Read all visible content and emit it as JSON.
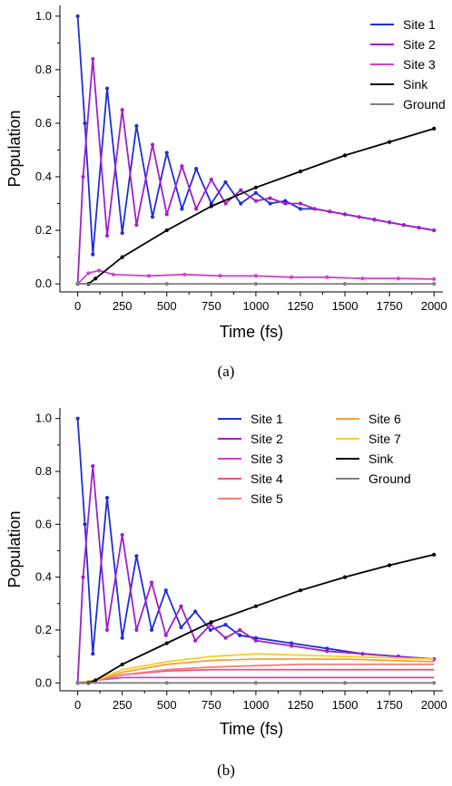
{
  "chart_data": [
    {
      "panel": "(a)",
      "type": "line",
      "xlabel": "Time (fs)",
      "ylabel": "Population",
      "xlim": [
        -100,
        2050
      ],
      "ylim": [
        -0.03,
        1.04
      ],
      "xticks": [
        0,
        250,
        500,
        750,
        1000,
        1250,
        1500,
        1750,
        2000
      ],
      "yticks": [
        0.0,
        0.2,
        0.4,
        0.6,
        0.8,
        1.0
      ],
      "legend_position": "top-right",
      "legend_columns": 1,
      "grid": false,
      "series": [
        {
          "name": "Site 1",
          "color": "#1f2fd6",
          "markers": true,
          "x": [
            0,
            40,
            85,
            165,
            250,
            330,
            420,
            500,
            585,
            665,
            750,
            830,
            915,
            1000,
            1080,
            1165,
            1250,
            1330,
            1415,
            1500,
            1580,
            1665,
            1750,
            1830,
            1915,
            2000
          ],
          "y": [
            1.0,
            0.6,
            0.11,
            0.73,
            0.19,
            0.59,
            0.25,
            0.49,
            0.28,
            0.43,
            0.3,
            0.38,
            0.3,
            0.34,
            0.3,
            0.31,
            0.28,
            0.28,
            0.27,
            0.26,
            0.25,
            0.24,
            0.23,
            0.22,
            0.21,
            0.2
          ]
        },
        {
          "name": "Site 2",
          "color": "#a020c8",
          "markers": true,
          "x": [
            0,
            30,
            85,
            165,
            250,
            330,
            420,
            500,
            585,
            665,
            750,
            830,
            915,
            1000,
            1080,
            1165,
            1250,
            1330,
            1415,
            1500,
            1580,
            1665,
            1750,
            1830,
            1915,
            2000
          ],
          "y": [
            0.0,
            0.4,
            0.84,
            0.18,
            0.65,
            0.22,
            0.52,
            0.26,
            0.44,
            0.28,
            0.39,
            0.3,
            0.35,
            0.31,
            0.32,
            0.3,
            0.3,
            0.28,
            0.27,
            0.26,
            0.25,
            0.24,
            0.23,
            0.22,
            0.21,
            0.2
          ]
        },
        {
          "name": "Site 3",
          "color": "#cc44cc",
          "markers": true,
          "x": [
            0,
            60,
            120,
            200,
            400,
            600,
            800,
            1000,
            1200,
            1400,
            1600,
            1800,
            2000
          ],
          "y": [
            0.0,
            0.04,
            0.05,
            0.035,
            0.03,
            0.035,
            0.03,
            0.03,
            0.025,
            0.025,
            0.02,
            0.02,
            0.018
          ]
        },
        {
          "name": "Sink",
          "color": "#000000",
          "markers": true,
          "x": [
            0,
            60,
            100,
            250,
            500,
            750,
            1000,
            1250,
            1500,
            1750,
            2000
          ],
          "y": [
            0.0,
            0.0,
            0.02,
            0.1,
            0.2,
            0.29,
            0.36,
            0.42,
            0.48,
            0.53,
            0.58
          ]
        },
        {
          "name": "Ground",
          "color": "#808080",
          "markers": true,
          "x": [
            0,
            500,
            1000,
            1500,
            2000
          ],
          "y": [
            0.0,
            0.0,
            0.0,
            0.0,
            0.0
          ]
        }
      ]
    },
    {
      "panel": "(b)",
      "type": "line",
      "xlabel": "Time (fs)",
      "ylabel": "Population",
      "xlim": [
        -100,
        2050
      ],
      "ylim": [
        -0.03,
        1.04
      ],
      "xticks": [
        0,
        250,
        500,
        750,
        1000,
        1250,
        1500,
        1750,
        2000
      ],
      "yticks": [
        0.0,
        0.2,
        0.4,
        0.6,
        0.8,
        1.0
      ],
      "legend_position": "top-right",
      "legend_columns": 2,
      "grid": false,
      "series": [
        {
          "name": "Site 1",
          "color": "#1f2fd6",
          "markers": true,
          "x": [
            0,
            40,
            85,
            165,
            250,
            330,
            415,
            495,
            580,
            660,
            745,
            830,
            910,
            1000,
            1200,
            1400,
            1600,
            1800,
            2000
          ],
          "y": [
            1.0,
            0.6,
            0.11,
            0.7,
            0.17,
            0.48,
            0.2,
            0.35,
            0.21,
            0.27,
            0.2,
            0.22,
            0.18,
            0.17,
            0.15,
            0.13,
            0.11,
            0.1,
            0.09
          ]
        },
        {
          "name": "Site 2",
          "color": "#a020c8",
          "markers": true,
          "x": [
            0,
            30,
            85,
            165,
            250,
            330,
            415,
            495,
            580,
            660,
            745,
            830,
            910,
            1000,
            1200,
            1400,
            1600,
            1800,
            2000
          ],
          "y": [
            0.0,
            0.4,
            0.82,
            0.2,
            0.56,
            0.2,
            0.38,
            0.18,
            0.29,
            0.16,
            0.22,
            0.17,
            0.2,
            0.16,
            0.14,
            0.12,
            0.11,
            0.1,
            0.09
          ]
        },
        {
          "name": "Site 3",
          "color": "#cc44cc",
          "markers": false,
          "x": [
            0,
            100,
            250,
            500,
            750,
            1000,
            1500,
            2000
          ],
          "y": [
            0.0,
            0.01,
            0.02,
            0.02,
            0.02,
            0.02,
            0.02,
            0.02
          ]
        },
        {
          "name": "Site 4",
          "color": "#ee5588",
          "markers": false,
          "x": [
            0,
            100,
            250,
            500,
            750,
            1000,
            1250,
            1500,
            1750,
            2000
          ],
          "y": [
            0.0,
            0.01,
            0.03,
            0.045,
            0.05,
            0.05,
            0.05,
            0.05,
            0.05,
            0.05
          ]
        },
        {
          "name": "Site 5",
          "color": "#f08080",
          "markers": false,
          "x": [
            0,
            100,
            250,
            500,
            750,
            1000,
            1250,
            1500,
            1750,
            2000
          ],
          "y": [
            0.0,
            0.01,
            0.03,
            0.05,
            0.06,
            0.065,
            0.07,
            0.07,
            0.07,
            0.07
          ]
        },
        {
          "name": "Site 6",
          "color": "#f5a040",
          "markers": false,
          "x": [
            0,
            100,
            250,
            500,
            750,
            1000,
            1250,
            1500,
            1750,
            2000
          ],
          "y": [
            0.0,
            0.01,
            0.04,
            0.07,
            0.085,
            0.09,
            0.09,
            0.09,
            0.085,
            0.08
          ]
        },
        {
          "name": "Site 7",
          "color": "#f5d020",
          "markers": false,
          "x": [
            0,
            100,
            250,
            500,
            750,
            1000,
            1250,
            1500,
            1750,
            2000
          ],
          "y": [
            0.0,
            0.01,
            0.05,
            0.08,
            0.1,
            0.11,
            0.105,
            0.1,
            0.095,
            0.09
          ]
        },
        {
          "name": "Sink",
          "color": "#000000",
          "markers": true,
          "x": [
            0,
            60,
            100,
            250,
            500,
            750,
            1000,
            1250,
            1500,
            1750,
            2000
          ],
          "y": [
            0.0,
            0.0,
            0.01,
            0.07,
            0.15,
            0.23,
            0.29,
            0.35,
            0.4,
            0.445,
            0.485
          ]
        },
        {
          "name": "Ground",
          "color": "#808080",
          "markers": true,
          "x": [
            0,
            500,
            1000,
            1500,
            2000
          ],
          "y": [
            0.0,
            0.0,
            0.0,
            0.0,
            0.0
          ]
        }
      ]
    }
  ]
}
